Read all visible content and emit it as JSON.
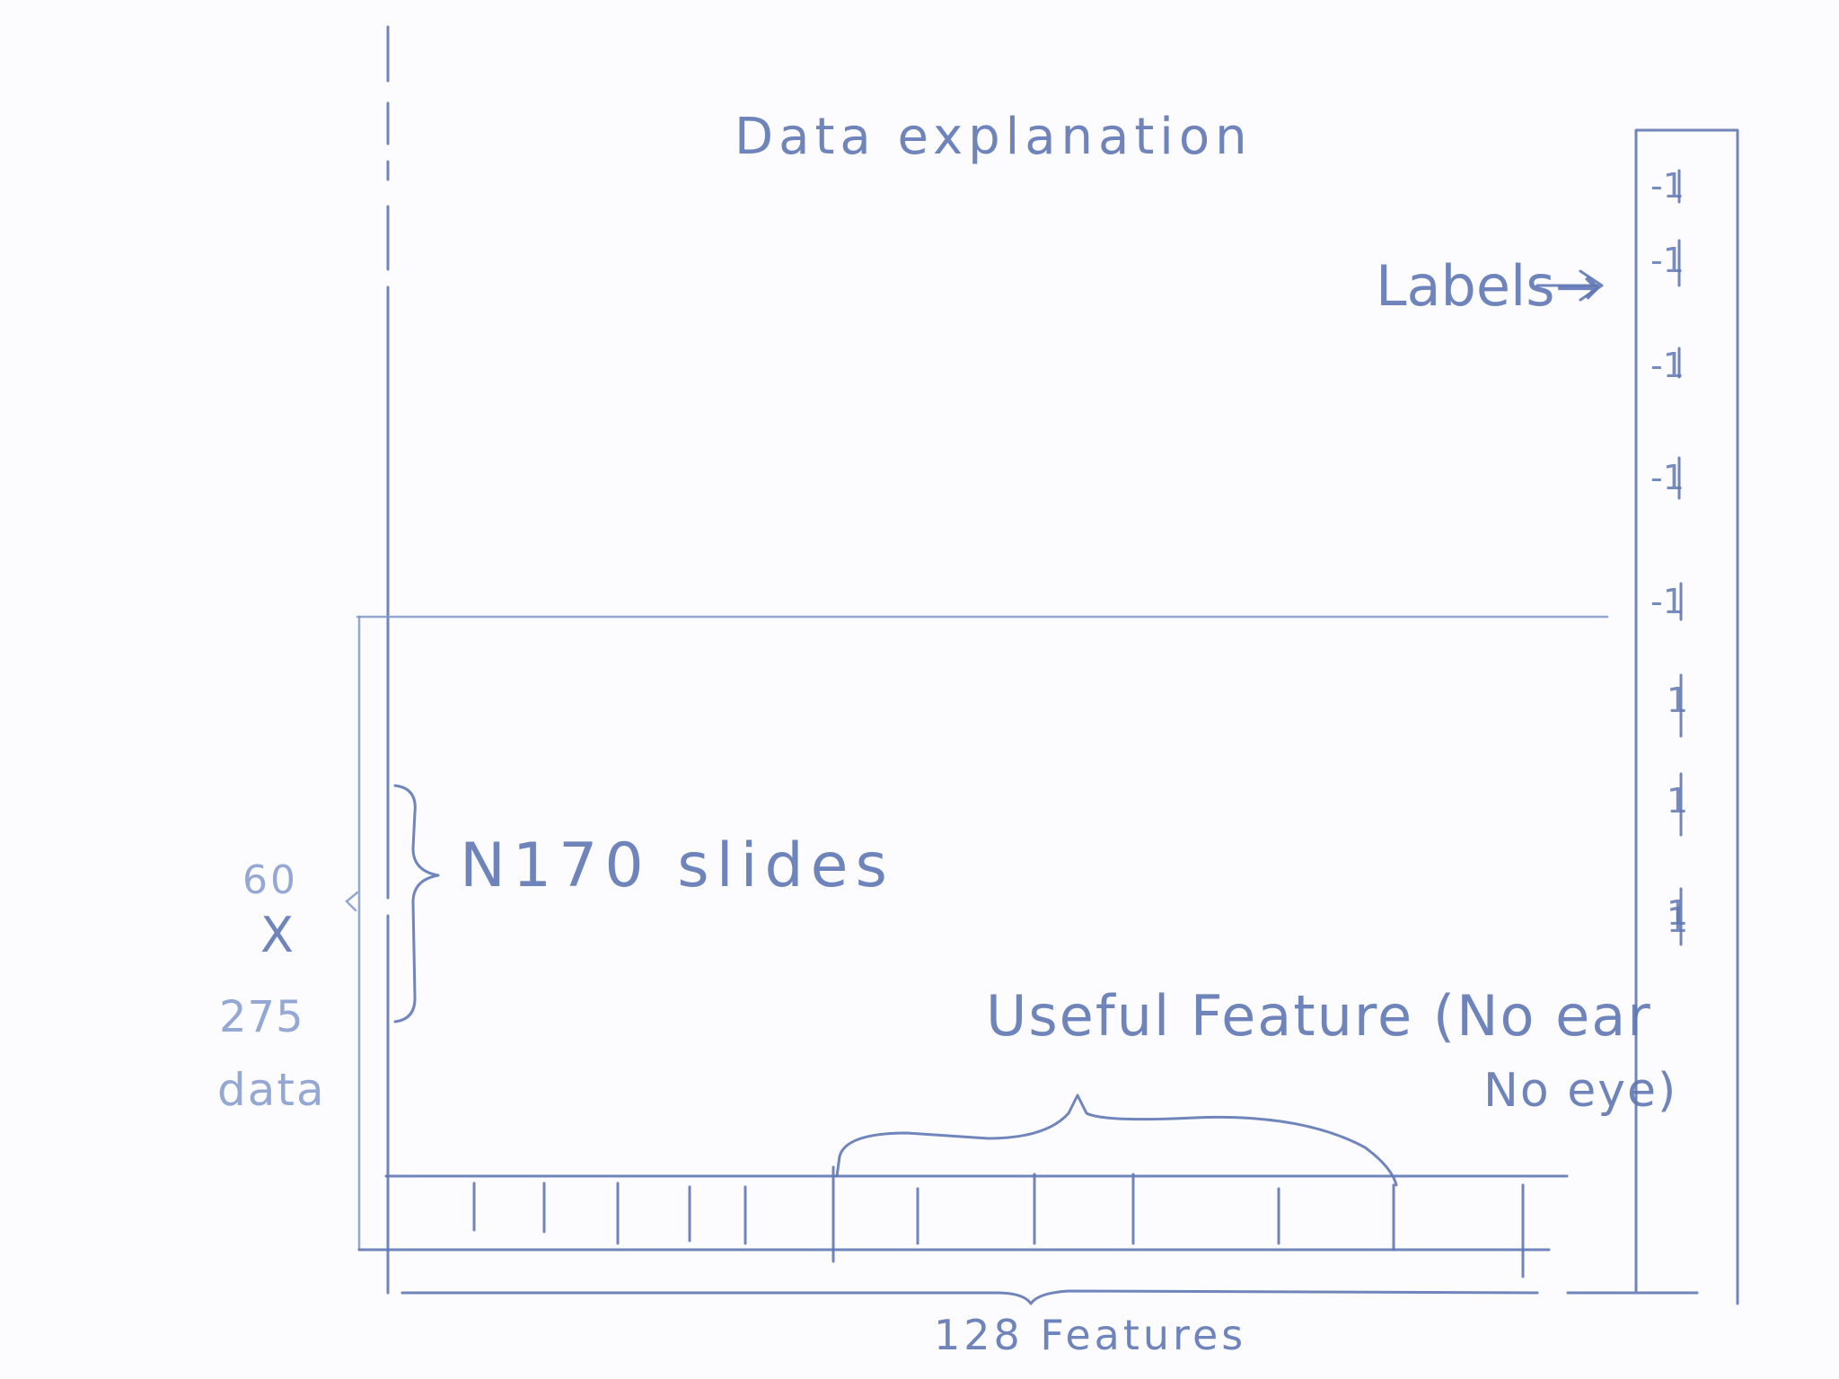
{
  "title": "Data explanation",
  "labels_text": "Labels→",
  "label_values": [
    "-1",
    "-1",
    "-1",
    "-1",
    "-1",
    "1",
    "1",
    "1",
    "1"
  ],
  "slides_text": "N170 slides",
  "dims": {
    "rows": "60",
    "times": "X",
    "cols": "275",
    "unit": "data"
  },
  "useful_feature": {
    "line1": "Useful Feature (No ear",
    "line2": "No eye)"
  },
  "features_text": "128 Features"
}
